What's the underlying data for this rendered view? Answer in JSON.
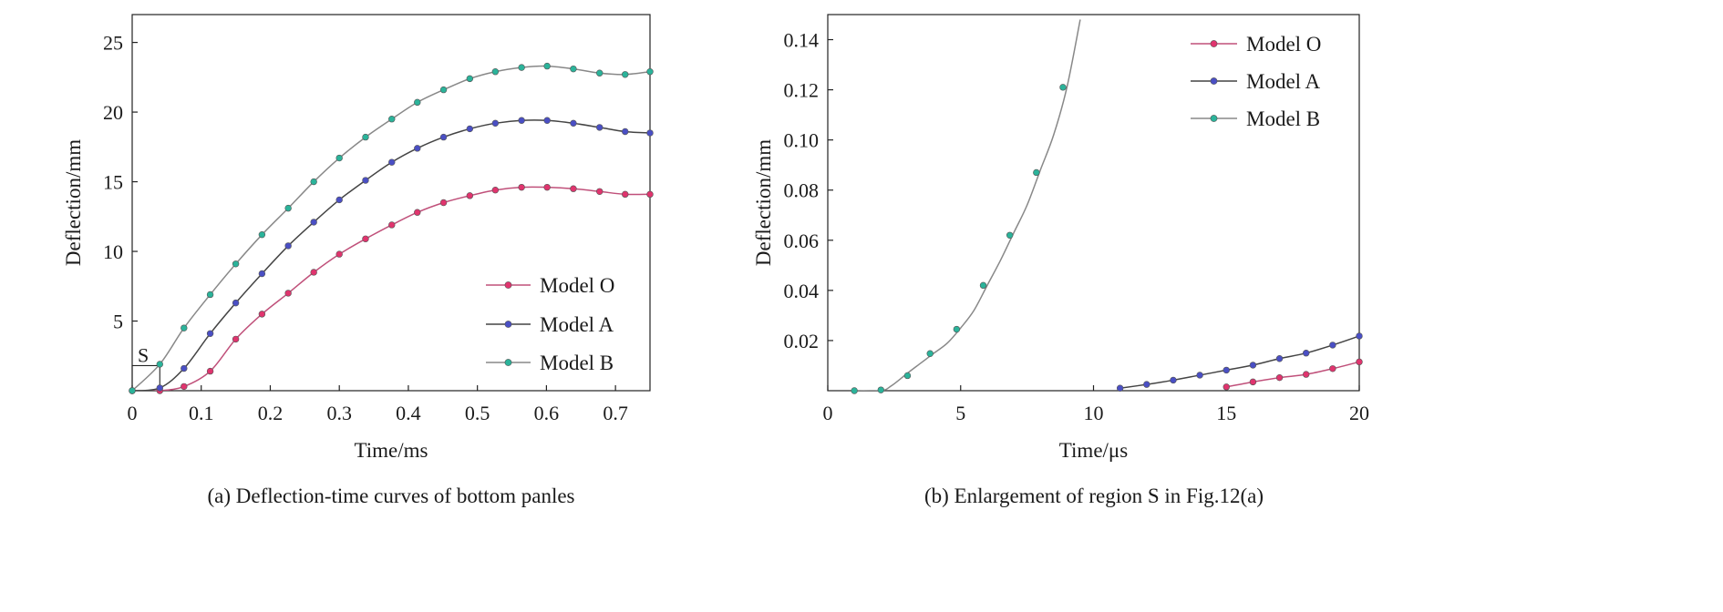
{
  "chart_data": [
    {
      "type": "line",
      "caption": "(a) Deflection-time curves of bottom panles",
      "xlabel": "Time/ms",
      "ylabel": "Deflection/mm",
      "xlim": [
        0,
        0.75
      ],
      "ylim": [
        0,
        27
      ],
      "xticks": [
        0,
        0.1,
        0.2,
        0.3,
        0.4,
        0.5,
        0.6,
        0.7
      ],
      "xtick_labels": [
        "0",
        "0.1",
        "0.2",
        "0.3",
        "0.4",
        "0.5",
        "0.6",
        "0.7"
      ],
      "yticks": [
        5,
        10,
        15,
        20,
        25
      ],
      "ytick_labels": [
        "5",
        "10",
        "15",
        "20",
        "25"
      ],
      "grid": false,
      "legend_position": "bottom-right",
      "annotation": {
        "label": "S",
        "region_x": [
          0,
          0.04
        ],
        "region_y": [
          0,
          1.8
        ]
      },
      "series": [
        {
          "name": "Model O",
          "color": "#e0346e",
          "line_color": "#c0507a",
          "x": [
            0,
            0.04,
            0.075,
            0.113,
            0.15,
            0.188,
            0.226,
            0.263,
            0.3,
            0.338,
            0.376,
            0.413,
            0.451,
            0.489,
            0.526,
            0.564,
            0.601,
            0.639,
            0.677,
            0.714,
            0.75
          ],
          "y": [
            0,
            0,
            0.3,
            1.4,
            3.7,
            5.5,
            7.0,
            8.5,
            9.8,
            10.9,
            11.9,
            12.8,
            13.5,
            14.0,
            14.4,
            14.6,
            14.6,
            14.5,
            14.3,
            14.1,
            14.1
          ]
        },
        {
          "name": "Model A",
          "color": "#4a4fc4",
          "line_color": "#444444",
          "x": [
            0,
            0.04,
            0.075,
            0.113,
            0.15,
            0.188,
            0.226,
            0.263,
            0.3,
            0.338,
            0.376,
            0.413,
            0.451,
            0.489,
            0.526,
            0.564,
            0.601,
            0.639,
            0.677,
            0.714,
            0.75
          ],
          "y": [
            0,
            0.2,
            1.6,
            4.1,
            6.3,
            8.4,
            10.4,
            12.1,
            13.7,
            15.1,
            16.4,
            17.4,
            18.2,
            18.8,
            19.2,
            19.4,
            19.4,
            19.2,
            18.9,
            18.6,
            18.5
          ]
        },
        {
          "name": "Model B",
          "color": "#2bb39a",
          "line_color": "#888888",
          "x": [
            0,
            0.04,
            0.075,
            0.113,
            0.15,
            0.188,
            0.226,
            0.263,
            0.3,
            0.338,
            0.376,
            0.413,
            0.451,
            0.489,
            0.526,
            0.564,
            0.601,
            0.639,
            0.677,
            0.714,
            0.75
          ],
          "y": [
            0,
            1.9,
            4.5,
            6.9,
            9.1,
            11.2,
            13.1,
            15.0,
            16.7,
            18.2,
            19.5,
            20.7,
            21.6,
            22.4,
            22.9,
            23.2,
            23.3,
            23.1,
            22.8,
            22.7,
            22.9
          ]
        }
      ]
    },
    {
      "type": "line",
      "caption": "(b) Enlargement of region S in Fig.12(a)",
      "xlabel": "Time/μs",
      "ylabel": "Deflection/mm",
      "xlim": [
        0,
        20
      ],
      "ylim": [
        0,
        0.15
      ],
      "xticks": [
        0,
        5,
        10,
        15,
        20
      ],
      "xtick_labels": [
        "0",
        "5",
        "10",
        "15",
        "20"
      ],
      "yticks": [
        0.02,
        0.04,
        0.06,
        0.08,
        0.1,
        0.12,
        0.14
      ],
      "ytick_labels": [
        "0.02",
        "0.04",
        "0.06",
        "0.08",
        "0.10",
        "0.12",
        "0.14"
      ],
      "grid": false,
      "legend_position": "top-right",
      "series": [
        {
          "name": "Model O",
          "color": "#e0346e",
          "line_color": "#c0507a",
          "x": [
            15,
            16,
            17,
            18,
            19,
            20
          ],
          "y": [
            0.0015,
            0.0035,
            0.0052,
            0.0065,
            0.0088,
            0.0115
          ]
        },
        {
          "name": "Model A",
          "color": "#4a4fc4",
          "line_color": "#444444",
          "x": [
            11,
            12,
            13,
            14,
            15,
            16,
            17,
            18,
            19,
            20
          ],
          "y": [
            0.001,
            0.0025,
            0.0042,
            0.0062,
            0.0082,
            0.0102,
            0.0128,
            0.015,
            0.0182,
            0.0218
          ]
        },
        {
          "name": "Model B",
          "color": "#2bb39a",
          "line_color": "#888888",
          "x": [
            1,
            2,
            2.4,
            3,
            3.5,
            4,
            4.5,
            5,
            5.5,
            6,
            6.5,
            7,
            7.5,
            8,
            8.5,
            9,
            9.5
          ],
          "y": [
            0,
            0,
            0.002,
            0.007,
            0.011,
            0.015,
            0.019,
            0.025,
            0.032,
            0.042,
            0.052,
            0.063,
            0.074,
            0.088,
            0.102,
            0.121,
            0.148
          ],
          "marker_x": [
            1,
            2,
            3,
            3.85,
            4.85,
            5.85,
            6.85,
            7.85,
            8.85
          ],
          "marker_y": [
            0,
            0.0003,
            0.006,
            0.0148,
            0.0245,
            0.042,
            0.062,
            0.087,
            0.121
          ]
        }
      ]
    }
  ]
}
